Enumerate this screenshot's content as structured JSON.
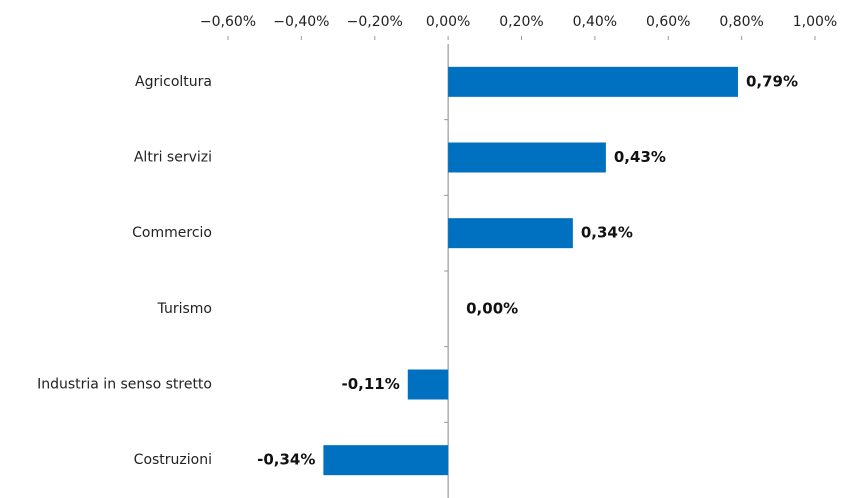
{
  "chart_data": {
    "type": "bar",
    "orientation": "horizontal",
    "categories": [
      "Agricoltura",
      "Altri servizi",
      "Commercio",
      "Turismo",
      "Industria in senso stretto",
      "Costruzioni"
    ],
    "values": [
      0.79,
      0.43,
      0.34,
      0,
      -0.11,
      -0.34
    ],
    "value_labels": [
      "0,79%",
      "0,43%",
      "0,34%",
      "0,00%",
      "-0,11%",
      "-0,34%"
    ],
    "color": "#0070c0",
    "xlim": [
      -0.6,
      1.0
    ],
    "xticks": [
      {
        "value": -0.6,
        "label": "−0,60%"
      },
      {
        "value": -0.4,
        "label": "−0,40%"
      },
      {
        "value": -0.2,
        "label": "−0,20%"
      },
      {
        "value": 0,
        "label": "0,00%"
      },
      {
        "value": 0.2,
        "label": "0,20%"
      },
      {
        "value": 0.4,
        "label": "0,40%"
      },
      {
        "value": 0.6,
        "label": "0,60%"
      },
      {
        "value": 0.8,
        "label": "0,80%"
      },
      {
        "value": 1.0,
        "label": "1,00%"
      }
    ],
    "grid": false
  }
}
